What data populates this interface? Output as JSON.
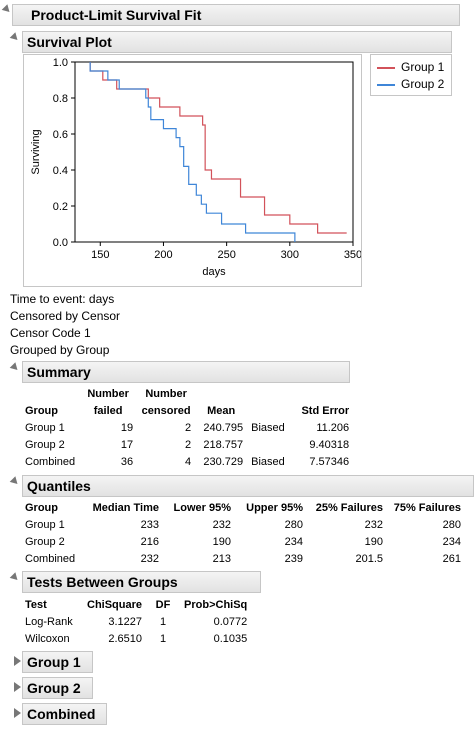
{
  "title": "Product-Limit Survival Fit",
  "survival_plot": {
    "heading": "Survival Plot",
    "legend": [
      {
        "label": "Group 1",
        "color": "#d2525a"
      },
      {
        "label": "Group 2",
        "color": "#3f86d8"
      }
    ]
  },
  "info_lines": [
    "Time to event: days",
    "Censored by Censor",
    "Censor Code 1",
    "Grouped by Group"
  ],
  "summary": {
    "heading": "Summary",
    "headers": {
      "group": "Group",
      "failed_1": "Number",
      "failed_2": "failed",
      "censored_1": "Number",
      "censored_2": "censored",
      "mean": "Mean",
      "std": "Std Error"
    },
    "rows": [
      {
        "group": "Group 1",
        "failed": "19",
        "censored": "2",
        "mean": "240.795",
        "note": "Biased",
        "std": "11.206"
      },
      {
        "group": "Group 2",
        "failed": "17",
        "censored": "2",
        "mean": "218.757",
        "note": "",
        "std": "9.40318"
      },
      {
        "group": "Combined",
        "failed": "36",
        "censored": "4",
        "mean": "230.729",
        "note": "Biased",
        "std": "7.57346"
      }
    ]
  },
  "quantiles": {
    "heading": "Quantiles",
    "headers": [
      "Group",
      "Median Time",
      "Lower 95%",
      "Upper 95%",
      "25% Failures",
      "75% Failures"
    ],
    "rows": [
      [
        "Group 1",
        "233",
        "232",
        "280",
        "232",
        "280"
      ],
      [
        "Group 2",
        "216",
        "190",
        "234",
        "190",
        "234"
      ],
      [
        "Combined",
        "232",
        "213",
        "239",
        "201.5",
        "261"
      ]
    ]
  },
  "tests": {
    "heading": "Tests Between Groups",
    "headers": [
      "Test",
      "ChiSquare",
      "DF",
      "Prob>ChiSq"
    ],
    "rows": [
      [
        "Log-Rank",
        "3.1227",
        "1",
        "0.0772"
      ],
      [
        "Wilcoxon",
        "2.6510",
        "1",
        "0.1035"
      ]
    ]
  },
  "collapsed_sections": [
    "Group 1",
    "Group 2",
    "Combined"
  ],
  "chart_data": {
    "type": "line",
    "xlabel": "days",
    "ylabel": "Surviving",
    "xlim": [
      130,
      350
    ],
    "ylim": [
      0,
      1
    ],
    "xticks": [
      "150",
      "200",
      "250",
      "300",
      "350"
    ],
    "yticks": [
      "0.0",
      "0.2",
      "0.4",
      "0.6",
      "0.8",
      "1.0"
    ],
    "series": [
      {
        "name": "Group 1",
        "color": "#d2525a",
        "x": [
          142,
          142,
          152,
          163,
          188,
          197,
          213,
          231,
          233,
          238,
          261,
          280,
          300,
          322,
          345
        ],
        "y": [
          1.0,
          0.95,
          0.9,
          0.85,
          0.8,
          0.75,
          0.7,
          0.65,
          0.4,
          0.35,
          0.25,
          0.15,
          0.1,
          0.05,
          0.05
        ]
      },
      {
        "name": "Group 2",
        "color": "#3f86d8",
        "x": [
          142,
          142,
          156,
          165,
          186,
          188,
          190,
          200,
          210,
          213,
          216,
          220,
          226,
          230,
          234,
          246,
          265,
          304
        ],
        "y": [
          1.0,
          0.95,
          0.9,
          0.85,
          0.8,
          0.75,
          0.68,
          0.63,
          0.58,
          0.53,
          0.42,
          0.32,
          0.26,
          0.21,
          0.16,
          0.1,
          0.05,
          0.0
        ]
      }
    ]
  }
}
